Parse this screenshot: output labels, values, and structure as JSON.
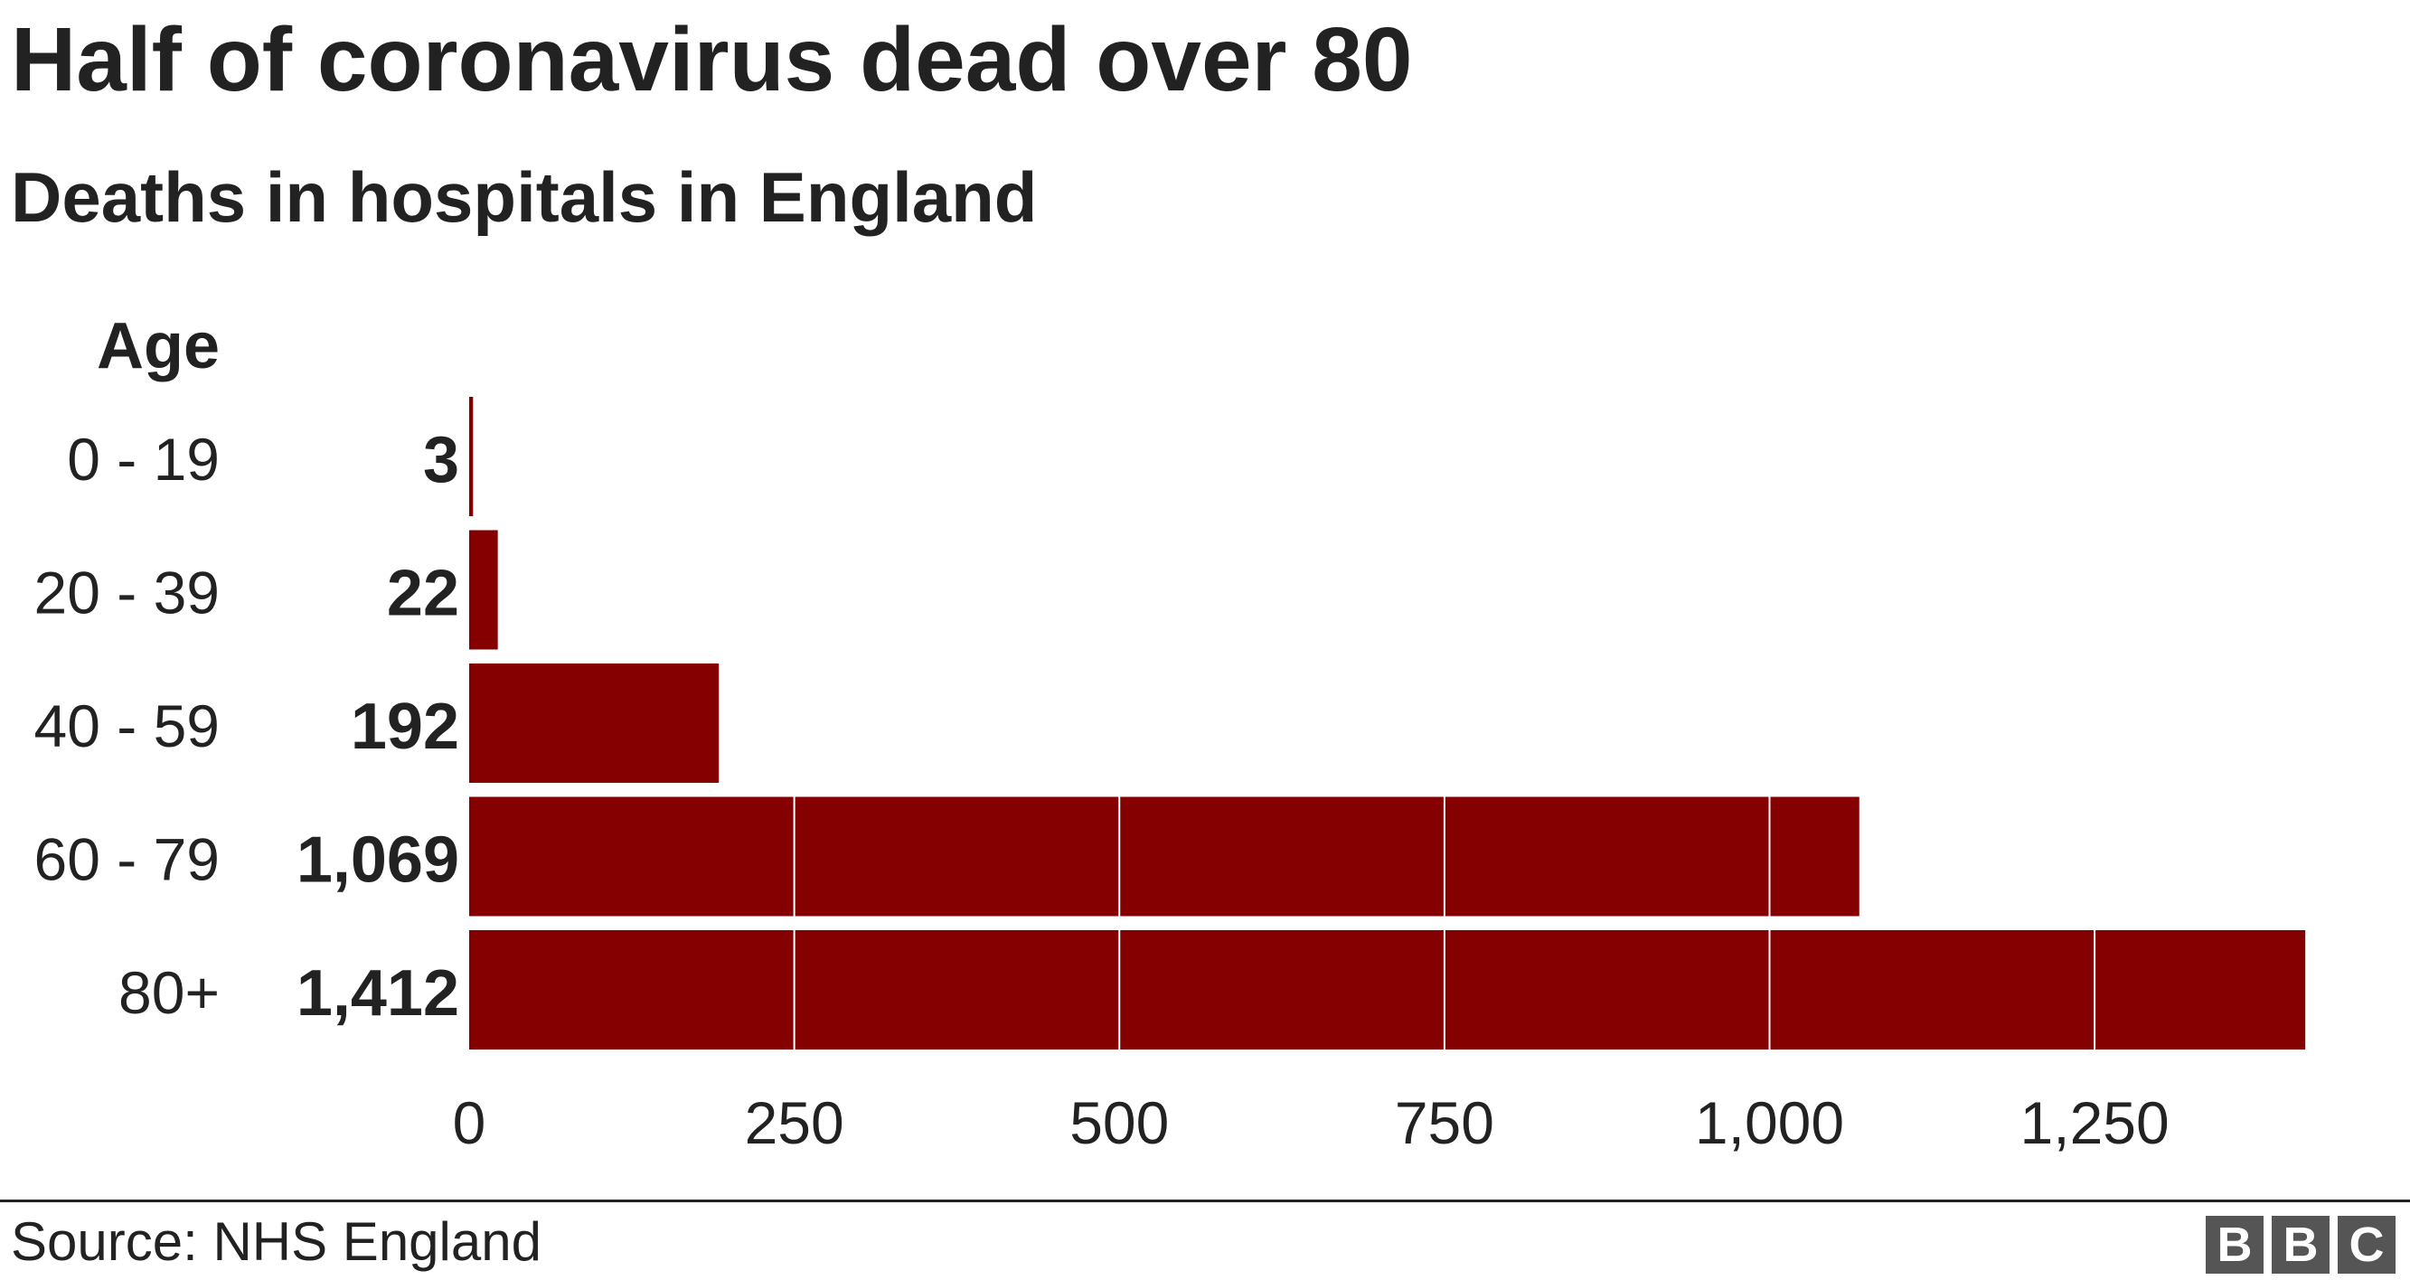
{
  "title": "Half of coronavirus dead over 80",
  "subtitle": "Deaths in hospitals in England",
  "source": "Source: NHS England",
  "logo": [
    "B",
    "B",
    "C"
  ],
  "colors": {
    "bar": "#850000",
    "text": "#222222",
    "gridline_on_bar": "#ffffff"
  },
  "chart_data": {
    "type": "bar",
    "orientation": "horizontal",
    "category_axis_label": "Age",
    "categories": [
      "0 - 19",
      "20 - 39",
      "40 - 59",
      "60 - 79",
      "80+"
    ],
    "values": [
      3,
      22,
      192,
      1069,
      1412
    ],
    "value_labels": [
      "3",
      "22",
      "192",
      "1,069",
      "1,412"
    ],
    "xlim": [
      0,
      1412
    ],
    "xticks": [
      0,
      250,
      500,
      750,
      1000,
      1250
    ],
    "xtick_labels": [
      "0",
      "250",
      "500",
      "750",
      "1,000",
      "1,250"
    ],
    "grid": "vertical gridlines shown over bars"
  }
}
